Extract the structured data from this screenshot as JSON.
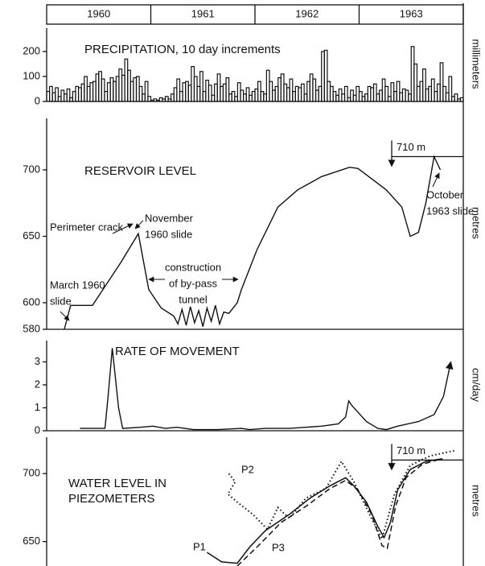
{
  "timeline": {
    "years": [
      "1960",
      "1961",
      "1962",
      "1963"
    ],
    "xlim": [
      1960,
      1964
    ]
  },
  "chart_data": [
    {
      "type": "step",
      "title": "PRECIPITATION, 10 day increments",
      "y_label": "millimeters",
      "color": "#111111",
      "ylim": [
        0,
        300
      ],
      "yticks": [
        0,
        100,
        200
      ],
      "values": [
        40,
        60,
        35,
        55,
        20,
        45,
        30,
        50,
        15,
        40,
        60,
        55,
        70,
        100,
        60,
        75,
        80,
        110,
        120,
        90,
        40,
        75,
        95,
        80,
        100,
        130,
        105,
        170,
        125,
        80,
        95,
        100,
        60,
        30,
        80,
        20,
        5,
        10,
        5,
        15,
        10,
        20,
        10,
        30,
        55,
        90,
        40,
        75,
        80,
        65,
        140,
        100,
        60,
        120,
        40,
        85,
        65,
        25,
        70,
        110,
        60,
        70,
        95,
        30,
        40,
        20,
        75,
        45,
        30,
        55,
        25,
        40,
        50,
        80,
        40,
        30,
        125,
        80,
        45,
        60,
        95,
        110,
        70,
        55,
        90,
        40,
        60,
        55,
        70,
        30,
        80,
        110,
        90,
        45,
        60,
        200,
        205,
        80,
        60,
        40,
        25,
        50,
        30,
        60,
        15,
        45,
        25,
        60,
        40,
        20,
        30,
        60,
        55,
        70,
        30,
        45,
        90,
        60,
        20,
        75,
        40,
        80,
        35,
        50,
        45,
        30,
        220,
        150,
        60,
        80,
        130,
        50,
        60,
        90,
        40,
        70,
        155,
        60,
        35,
        100,
        20,
        30,
        10,
        15
      ]
    },
    {
      "type": "line",
      "title": "RESERVOIR LEVEL",
      "y_label": "metres",
      "color": "#111111",
      "ylim": [
        580,
        740
      ],
      "yticks": [
        580,
        600,
        650,
        700
      ],
      "reference": {
        "value": 710,
        "label": "710 m"
      },
      "annotations": [
        [
          "Perimeter crack"
        ],
        [
          "November",
          "1960 slide"
        ],
        [
          "March 1960",
          "slide"
        ],
        [
          "construction",
          "of by-pass",
          "tunnel"
        ],
        [
          "October",
          "1963 slide"
        ]
      ],
      "x": [
        1960.17,
        1960.23,
        1960.44,
        1960.71,
        1960.88,
        1960.98,
        1961.1,
        1961.22,
        1961.26,
        1961.3,
        1961.34,
        1961.38,
        1961.42,
        1961.46,
        1961.5,
        1961.54,
        1961.58,
        1961.62,
        1961.66,
        1961.7,
        1961.75,
        1961.83,
        1961.87,
        1962.02,
        1962.22,
        1962.41,
        1962.64,
        1962.91,
        1962.99,
        1963.26,
        1963.41,
        1963.49,
        1963.57,
        1963.64,
        1963.72,
        1963.78
      ],
      "values": [
        580,
        598,
        598,
        630,
        652,
        610,
        596,
        590,
        584,
        595,
        583,
        597,
        585,
        594,
        582,
        596,
        586,
        598,
        584,
        593,
        592,
        600,
        610,
        640,
        672,
        685,
        695,
        702,
        701,
        685,
        672,
        650,
        653,
        675,
        710,
        700
      ]
    },
    {
      "type": "line",
      "title": "RATE OF MOVEMENT",
      "y_label": "cm/day",
      "color": "#111111",
      "ylim": [
        0,
        4
      ],
      "yticks": [
        0,
        1,
        2,
        3
      ],
      "end_arrow": true,
      "x": [
        1960.32,
        1960.48,
        1960.56,
        1960.59,
        1960.63,
        1960.69,
        1960.73,
        1960.9,
        1961.02,
        1961.14,
        1961.25,
        1961.41,
        1961.64,
        1961.87,
        1961.95,
        1962.1,
        1962.33,
        1962.64,
        1962.8,
        1962.87,
        1962.9,
        1962.93,
        1962.99,
        1963.07,
        1963.18,
        1963.26,
        1963.37,
        1963.57,
        1963.72,
        1963.81,
        1963.88
      ],
      "values": [
        0.1,
        0.1,
        0.1,
        1.5,
        3.6,
        1.0,
        0.1,
        0.15,
        0.2,
        0.1,
        0.15,
        0.05,
        0.05,
        0.1,
        0.05,
        0.1,
        0.1,
        0.2,
        0.3,
        0.6,
        1.3,
        1.1,
        0.8,
        0.4,
        0.1,
        0.05,
        0.2,
        0.4,
        0.7,
        1.5,
        3.0
      ]
    },
    {
      "type": "multiline",
      "title": [
        "WATER LEVEL IN",
        "PIEZOMETERS"
      ],
      "y_label": "metres",
      "ylim": [
        632,
        728
      ],
      "yticks": [
        650,
        700
      ],
      "reference": {
        "value": 710,
        "label": "710 m"
      },
      "series": [
        {
          "name": "P1",
          "color": "#111111",
          "style": "solid",
          "x": [
            1961.54,
            1961.68,
            1961.83,
            1961.95,
            1962.1,
            1962.33,
            1962.53,
            1962.72,
            1962.87,
            1962.95,
            1963.07,
            1963.18,
            1963.24,
            1963.3,
            1963.37,
            1963.49,
            1963.64,
            1963.8
          ],
          "values": [
            642,
            635,
            634,
            646,
            658,
            670,
            682,
            691,
            697,
            691,
            679,
            661,
            653,
            664,
            688,
            703,
            709,
            711
          ]
        },
        {
          "name": "P2",
          "color": "#111111",
          "style": "dotted",
          "x": [
            1961.75,
            1961.81,
            1961.74,
            1961.83,
            1961.98,
            1962.12,
            1962.22,
            1962.33,
            1962.49,
            1962.68,
            1962.83,
            1962.95,
            1963.1,
            1963.22,
            1963.34,
            1963.49,
            1963.68,
            1963.92
          ],
          "values": [
            700,
            694,
            685,
            679,
            670,
            659,
            675,
            667,
            682,
            689,
            709,
            694,
            670,
            652,
            685,
            706,
            713,
            717
          ]
        },
        {
          "name": "P3",
          "color": "#111111",
          "style": "dashed",
          "x": [
            1961.83,
            1962.02,
            1962.25,
            1962.49,
            1962.72,
            1962.87,
            1962.99,
            1963.12,
            1963.22,
            1963.27,
            1963.35,
            1963.45,
            1963.61,
            1963.8
          ],
          "values": [
            632,
            646,
            664,
            676,
            689,
            695,
            688,
            670,
            647,
            645,
            676,
            697,
            707,
            711
          ]
        }
      ]
    }
  ]
}
